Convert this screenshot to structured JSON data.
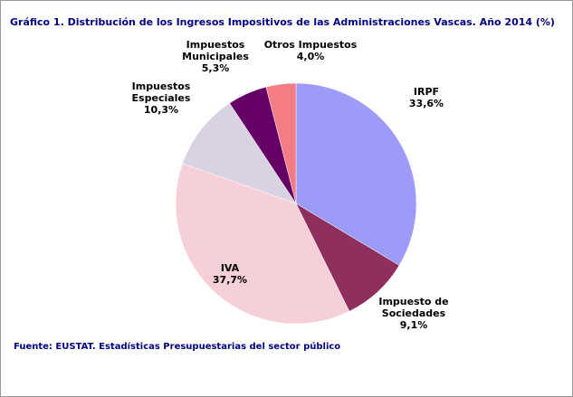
{
  "chart_data": {
    "type": "pie",
    "title": "Gráfico 1. Distribución de los Ingresos Impositivos de las Administraciones Vascas. Año 2014 (%)",
    "source": "Fuente: EUSTAT. Estadísticas Presupuestarias del sector público",
    "categories": [
      "IRPF",
      "Impuesto de Sociedades",
      "IVA",
      "Impuestos Especiales",
      "Impuestos Municipales",
      "Otros Impuestos"
    ],
    "values": [
      33.6,
      9.1,
      37.7,
      10.3,
      5.3,
      4.0
    ],
    "value_labels": [
      "33,6%",
      "9,1%",
      "37,7%",
      "10,3%",
      "5,3%",
      "4,0%"
    ],
    "colors": [
      "#9c9cf8",
      "#8e2f5e",
      "#f6d0d8",
      "#d9d2e2",
      "#650066",
      "#f47c84"
    ]
  }
}
